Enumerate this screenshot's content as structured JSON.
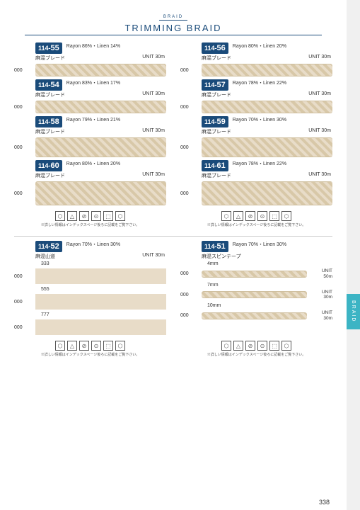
{
  "header": {
    "sub": "BRAID",
    "main": "TRIMMING BRAID"
  },
  "side_tab": "BRAID",
  "page_number": "338",
  "care_note": "※詳しい情報はインデックスページ後ろに記載をご覧下さい。",
  "care_icons": [
    "⬡",
    "△",
    "⊘",
    "⊙",
    "⬚",
    "⬡"
  ],
  "items_top_left": [
    {
      "code_pre": "114-",
      "code_suf": "55",
      "comp": "Rayon 86%・Linen 14%",
      "name": "麻混ブレード",
      "unit": "UNIT 30m",
      "cls": ""
    },
    {
      "code_pre": "114-",
      "code_suf": "54",
      "comp": "Rayon 83%・Linen 17%",
      "name": "麻混ブレード",
      "unit": "UNIT 30m",
      "cls": ""
    },
    {
      "code_pre": "114-",
      "code_suf": "58",
      "comp": "Rayon 79%・Linen 21%",
      "name": "麻混ブレード",
      "unit": "UNIT 30m",
      "cls": "tall"
    },
    {
      "code_pre": "114-",
      "code_suf": "60",
      "comp": "Rayon 80%・Linen 20%",
      "name": "麻混ブレード",
      "unit": "UNIT 30m",
      "cls": "xtall"
    }
  ],
  "items_top_right": [
    {
      "code_pre": "114-",
      "code_suf": "56",
      "comp": "Rayon 80%・Linen 20%",
      "name": "麻混ブレード",
      "unit": "UNIT 30m",
      "cls": ""
    },
    {
      "code_pre": "114-",
      "code_suf": "57",
      "comp": "Rayon 78%・Linen 22%",
      "name": "麻混ブレード",
      "unit": "UNIT 30m",
      "cls": ""
    },
    {
      "code_pre": "114-",
      "code_suf": "59",
      "comp": "Rayon 70%・Linen 30%",
      "name": "麻混ブレード",
      "unit": "UNIT 30m",
      "cls": "tall"
    },
    {
      "code_pre": "114-",
      "code_suf": "61",
      "comp": "Rayon 78%・Linen 22%",
      "name": "麻混ブレード",
      "unit": "UNIT 30m",
      "cls": "xtall"
    }
  ],
  "bottom_left": {
    "code_pre": "114-",
    "code_suf": "52",
    "comp": "Rayon 70%・Linen 30%",
    "name": "麻混山道",
    "unit": "UNIT 30m",
    "variants": [
      {
        "label": "333",
        "meta": ""
      },
      {
        "label": "555",
        "meta": ""
      },
      {
        "label": "777",
        "meta": ""
      }
    ]
  },
  "bottom_right": {
    "code_pre": "114-",
    "code_suf": "51",
    "comp": "Rayon 70%・Linen 30%",
    "name": "麻混スピンテープ",
    "unit": "",
    "variants": [
      {
        "label": "4mm",
        "unit_l1": "UNIT",
        "unit_l2": "50m"
      },
      {
        "label": "7mm",
        "unit_l1": "UNIT",
        "unit_l2": "30m"
      },
      {
        "label": "10mm",
        "unit_l1": "UNIT",
        "unit_l2": "30m"
      }
    ]
  },
  "code_000": "000"
}
